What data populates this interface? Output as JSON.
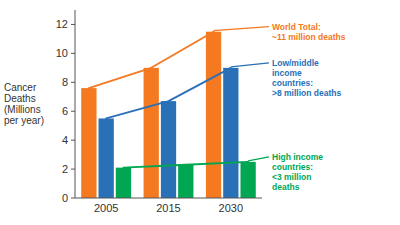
{
  "chart_data": {
    "type": "bar",
    "y_label": "Cancer\nDeaths\n(Millions\nper year)",
    "categories": [
      "2005",
      "2015",
      "2030"
    ],
    "series": [
      {
        "color": "#F47920",
        "values": [
          7.6,
          9.0,
          11.5
        ]
      },
      {
        "color": "#2970B6",
        "values": [
          5.5,
          6.7,
          9.0
        ]
      },
      {
        "color": "#00A651",
        "values": [
          2.1,
          2.3,
          2.5
        ]
      }
    ],
    "ylim": [
      0,
      13
    ],
    "yticks": [
      0,
      2,
      4,
      6,
      8,
      10,
      12
    ],
    "grid": false,
    "annotations": [
      {
        "text": "World Total:\n~11 million deaths",
        "color": "#F47920"
      },
      {
        "text": "Low/middle\nincome\ncountries:\n>8 million deaths",
        "color": "#2970B6"
      },
      {
        "text": "High income\ncountries:\n<3 million\ndeaths",
        "color": "#00A651"
      }
    ]
  }
}
